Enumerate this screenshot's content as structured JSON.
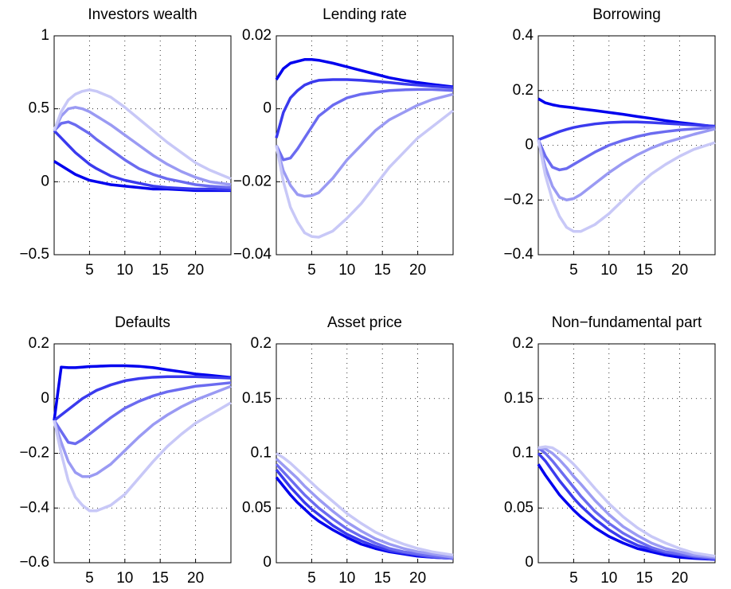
{
  "chart_data": [
    {
      "type": "line",
      "title": "Investors wealth",
      "x": [
        0,
        1,
        2,
        3,
        4,
        5,
        6,
        8,
        10,
        12,
        14,
        16,
        18,
        20,
        22,
        25
      ],
      "xlim": [
        0,
        25
      ],
      "xticks": [
        5,
        10,
        15,
        20
      ],
      "ylim": [
        -0.5,
        1
      ],
      "yticks": [
        -0.5,
        0,
        0.5,
        1
      ],
      "grid": true,
      "series": [
        {
          "color": "#0000ee",
          "values": [
            0.14,
            0.11,
            0.08,
            0.05,
            0.03,
            0.01,
            0,
            -0.02,
            -0.03,
            -0.04,
            -0.05,
            -0.05,
            -0.055,
            -0.06,
            -0.06,
            -0.06
          ]
        },
        {
          "color": "#3a3aee",
          "values": [
            0.35,
            0.3,
            0.25,
            0.2,
            0.16,
            0.12,
            0.09,
            0.04,
            0.01,
            -0.01,
            -0.03,
            -0.04,
            -0.045,
            -0.05,
            -0.05,
            -0.055
          ]
        },
        {
          "color": "#6b6bf0",
          "values": [
            0.35,
            0.4,
            0.41,
            0.39,
            0.36,
            0.33,
            0.29,
            0.22,
            0.15,
            0.09,
            0.05,
            0.02,
            0,
            -0.02,
            -0.03,
            -0.04
          ]
        },
        {
          "color": "#9a9af3",
          "values": [
            0.35,
            0.45,
            0.5,
            0.51,
            0.5,
            0.48,
            0.45,
            0.39,
            0.32,
            0.25,
            0.18,
            0.12,
            0.07,
            0.03,
            0,
            -0.02
          ]
        },
        {
          "color": "#c8c8f7",
          "values": [
            0.35,
            0.48,
            0.56,
            0.6,
            0.62,
            0.63,
            0.62,
            0.58,
            0.51,
            0.43,
            0.35,
            0.27,
            0.2,
            0.13,
            0.08,
            0.02
          ]
        }
      ]
    },
    {
      "type": "line",
      "title": "Lending rate",
      "x": [
        0,
        1,
        2,
        3,
        4,
        5,
        6,
        8,
        10,
        12,
        14,
        16,
        18,
        20,
        22,
        25
      ],
      "xlim": [
        0,
        25
      ],
      "xticks": [
        5,
        10,
        15,
        20
      ],
      "ylim": [
        -0.04,
        0.02
      ],
      "yticks": [
        -0.04,
        -0.02,
        0,
        0.02
      ],
      "grid": true,
      "series": [
        {
          "color": "#0000ee",
          "values": [
            0.008,
            0.011,
            0.0125,
            0.013,
            0.0135,
            0.0135,
            0.0133,
            0.0125,
            0.0115,
            0.0105,
            0.0095,
            0.0085,
            0.0078,
            0.0072,
            0.0067,
            0.006
          ]
        },
        {
          "color": "#3a3aee",
          "values": [
            -0.008,
            -0.001,
            0.003,
            0.005,
            0.0065,
            0.0073,
            0.0078,
            0.008,
            0.008,
            0.0078,
            0.0075,
            0.0072,
            0.0068,
            0.0065,
            0.0062,
            0.0058
          ]
        },
        {
          "color": "#6b6bf0",
          "values": [
            -0.01,
            -0.014,
            -0.0135,
            -0.011,
            -0.008,
            -0.005,
            -0.002,
            0.001,
            0.003,
            0.004,
            0.0045,
            0.005,
            0.0052,
            0.0053,
            0.0053,
            0.005
          ]
        },
        {
          "color": "#9a9af3",
          "values": [
            -0.01,
            -0.017,
            -0.021,
            -0.0235,
            -0.024,
            -0.0238,
            -0.023,
            -0.019,
            -0.014,
            -0.01,
            -0.006,
            -0.003,
            -0.001,
            0.001,
            0.0025,
            0.004
          ]
        },
        {
          "color": "#c8c8f7",
          "values": [
            -0.01,
            -0.02,
            -0.027,
            -0.031,
            -0.034,
            -0.035,
            -0.0352,
            -0.0335,
            -0.03,
            -0.026,
            -0.021,
            -0.016,
            -0.012,
            -0.008,
            -0.005,
            -0.0005
          ]
        }
      ]
    },
    {
      "type": "line",
      "title": "Borrowing",
      "x": [
        0,
        1,
        2,
        3,
        4,
        5,
        6,
        8,
        10,
        12,
        14,
        16,
        18,
        20,
        22,
        25
      ],
      "xlim": [
        0,
        25
      ],
      "xticks": [
        5,
        10,
        15,
        20
      ],
      "ylim": [
        -0.4,
        0.4
      ],
      "yticks": [
        -0.4,
        -0.2,
        0,
        0.2,
        0.4
      ],
      "grid": true,
      "series": [
        {
          "color": "#0000ee",
          "values": [
            0.17,
            0.155,
            0.148,
            0.143,
            0.14,
            0.137,
            0.133,
            0.127,
            0.12,
            0.113,
            0.105,
            0.098,
            0.09,
            0.083,
            0.077,
            0.068
          ]
        },
        {
          "color": "#3a3aee",
          "values": [
            0.02,
            0.03,
            0.04,
            0.05,
            0.058,
            0.065,
            0.07,
            0.078,
            0.083,
            0.085,
            0.085,
            0.083,
            0.08,
            0.077,
            0.074,
            0.07
          ]
        },
        {
          "color": "#6b6bf0",
          "values": [
            0.02,
            -0.04,
            -0.08,
            -0.09,
            -0.085,
            -0.07,
            -0.055,
            -0.025,
            0,
            0.018,
            0.032,
            0.043,
            0.05,
            0.056,
            0.06,
            0.065
          ]
        },
        {
          "color": "#9a9af3",
          "values": [
            0.02,
            -0.08,
            -0.15,
            -0.19,
            -0.2,
            -0.195,
            -0.18,
            -0.14,
            -0.1,
            -0.065,
            -0.035,
            -0.01,
            0.01,
            0.025,
            0.04,
            0.06
          ]
        },
        {
          "color": "#c8c8f7",
          "values": [
            0.02,
            -0.11,
            -0.2,
            -0.26,
            -0.3,
            -0.315,
            -0.315,
            -0.29,
            -0.25,
            -0.2,
            -0.15,
            -0.105,
            -0.07,
            -0.04,
            -0.015,
            0.01
          ]
        }
      ]
    },
    {
      "type": "line",
      "title": "Defaults",
      "x": [
        0,
        1,
        2,
        3,
        4,
        5,
        6,
        8,
        10,
        12,
        14,
        16,
        18,
        20,
        22,
        25
      ],
      "xlim": [
        0,
        25
      ],
      "xticks": [
        5,
        10,
        15,
        20
      ],
      "ylim": [
        -0.6,
        0.2
      ],
      "yticks": [
        -0.6,
        -0.4,
        -0.2,
        0,
        0.2
      ],
      "grid": true,
      "series": [
        {
          "color": "#0000ee",
          "values": [
            -0.08,
            0.115,
            0.113,
            0.113,
            0.115,
            0.117,
            0.118,
            0.12,
            0.12,
            0.118,
            0.113,
            0.105,
            0.098,
            0.09,
            0.085,
            0.077
          ]
        },
        {
          "color": "#3a3aee",
          "values": [
            -0.08,
            -0.06,
            -0.04,
            -0.02,
            0,
            0.015,
            0.03,
            0.05,
            0.065,
            0.073,
            0.078,
            0.08,
            0.08,
            0.08,
            0.078,
            0.075
          ]
        },
        {
          "color": "#6b6bf0",
          "values": [
            -0.08,
            -0.12,
            -0.16,
            -0.165,
            -0.15,
            -0.13,
            -0.11,
            -0.07,
            -0.035,
            -0.01,
            0.01,
            0.025,
            0.035,
            0.045,
            0.05,
            0.058
          ]
        },
        {
          "color": "#9a9af3",
          "values": [
            -0.08,
            -0.16,
            -0.23,
            -0.27,
            -0.285,
            -0.285,
            -0.275,
            -0.24,
            -0.19,
            -0.14,
            -0.095,
            -0.06,
            -0.03,
            -0.005,
            0.015,
            0.045
          ]
        },
        {
          "color": "#c8c8f7",
          "values": [
            -0.08,
            -0.2,
            -0.3,
            -0.36,
            -0.39,
            -0.41,
            -0.41,
            -0.39,
            -0.35,
            -0.29,
            -0.23,
            -0.175,
            -0.13,
            -0.09,
            -0.06,
            -0.015
          ]
        }
      ]
    },
    {
      "type": "line",
      "title": "Asset price",
      "x": [
        0,
        1,
        2,
        3,
        4,
        5,
        6,
        8,
        10,
        12,
        14,
        16,
        18,
        20,
        22,
        25
      ],
      "xlim": [
        0,
        25
      ],
      "xticks": [
        5,
        10,
        15,
        20
      ],
      "ylim": [
        0,
        0.2
      ],
      "yticks": [
        0,
        0.05,
        0.1,
        0.15,
        0.2
      ],
      "grid": true,
      "series": [
        {
          "color": "#0000ee",
          "values": [
            0.078,
            0.07,
            0.062,
            0.055,
            0.049,
            0.043,
            0.038,
            0.03,
            0.023,
            0.017,
            0.013,
            0.01,
            0.008,
            0.006,
            0.005,
            0.004
          ]
        },
        {
          "color": "#3a3aee",
          "values": [
            0.085,
            0.077,
            0.069,
            0.062,
            0.055,
            0.049,
            0.044,
            0.034,
            0.026,
            0.02,
            0.015,
            0.011,
            0.009,
            0.007,
            0.005,
            0.004
          ]
        },
        {
          "color": "#6b6bf0",
          "values": [
            0.09,
            0.083,
            0.076,
            0.069,
            0.062,
            0.056,
            0.05,
            0.04,
            0.031,
            0.024,
            0.018,
            0.013,
            0.01,
            0.008,
            0.006,
            0.004
          ]
        },
        {
          "color": "#9a9af3",
          "values": [
            0.095,
            0.089,
            0.083,
            0.077,
            0.07,
            0.064,
            0.058,
            0.047,
            0.037,
            0.029,
            0.022,
            0.017,
            0.013,
            0.01,
            0.008,
            0.005
          ]
        },
        {
          "color": "#c8c8f7",
          "values": [
            0.1,
            0.096,
            0.091,
            0.085,
            0.079,
            0.073,
            0.067,
            0.056,
            0.045,
            0.036,
            0.028,
            0.022,
            0.017,
            0.013,
            0.01,
            0.007
          ]
        }
      ]
    },
    {
      "type": "line",
      "title": "Non−fundamental part",
      "x": [
        0,
        1,
        2,
        3,
        4,
        5,
        6,
        8,
        10,
        12,
        14,
        16,
        18,
        20,
        22,
        25
      ],
      "xlim": [
        0,
        25
      ],
      "xticks": [
        5,
        10,
        15,
        20
      ],
      "ylim": [
        0,
        0.2
      ],
      "yticks": [
        0,
        0.05,
        0.1,
        0.15,
        0.2
      ],
      "grid": true,
      "series": [
        {
          "color": "#0000ee",
          "values": [
            0.09,
            0.08,
            0.071,
            0.062,
            0.055,
            0.048,
            0.042,
            0.032,
            0.024,
            0.018,
            0.013,
            0.01,
            0.007,
            0.005,
            0.004,
            0.003
          ]
        },
        {
          "color": "#3a3aee",
          "values": [
            0.1,
            0.093,
            0.084,
            0.075,
            0.067,
            0.059,
            0.052,
            0.04,
            0.03,
            0.022,
            0.016,
            0.012,
            0.009,
            0.007,
            0.005,
            0.003
          ]
        },
        {
          "color": "#6b6bf0",
          "values": [
            0.105,
            0.1,
            0.093,
            0.085,
            0.077,
            0.069,
            0.061,
            0.047,
            0.036,
            0.027,
            0.02,
            0.014,
            0.01,
            0.008,
            0.006,
            0.004
          ]
        },
        {
          "color": "#9a9af3",
          "values": [
            0.105,
            0.104,
            0.1,
            0.094,
            0.087,
            0.079,
            0.072,
            0.057,
            0.044,
            0.033,
            0.025,
            0.018,
            0.013,
            0.01,
            0.007,
            0.005
          ]
        },
        {
          "color": "#c8c8f7",
          "values": [
            0.105,
            0.106,
            0.105,
            0.101,
            0.096,
            0.09,
            0.083,
            0.068,
            0.054,
            0.042,
            0.032,
            0.024,
            0.018,
            0.013,
            0.009,
            0.006
          ]
        }
      ]
    }
  ]
}
